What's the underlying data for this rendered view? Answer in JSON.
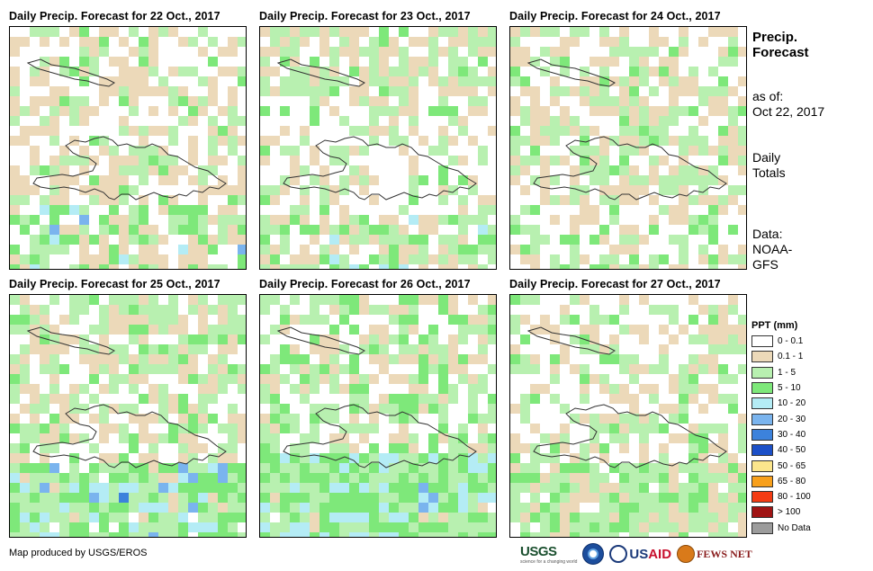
{
  "panels": [
    {
      "title": "Daily Precip. Forecast for 22 Oct., 2017",
      "profile": 0
    },
    {
      "title": "Daily Precip. Forecast for 23 Oct., 2017",
      "profile": 1
    },
    {
      "title": "Daily Precip. Forecast for 24 Oct., 2017",
      "profile": 2
    },
    {
      "title": "Daily Precip. Forecast for 25 Oct., 2017",
      "profile": 3
    },
    {
      "title": "Daily Precip. Forecast for 26 Oct., 2017",
      "profile": 4
    },
    {
      "title": "Daily Precip. Forecast for 27 Oct., 2017",
      "profile": 5
    }
  ],
  "sidebar": {
    "title_line1": "Precip.",
    "title_line2": "Forecast",
    "asof_label": "as of:",
    "asof_date": "Oct 22, 2017",
    "totals_line1": "Daily",
    "totals_line2": "Totals",
    "data_line1": "Data:",
    "data_line2": "NOAA-",
    "data_line3": "GFS"
  },
  "legend": {
    "title": "PPT (mm)",
    "items": [
      {
        "label": "0 - 0.1",
        "color": "#ffffff"
      },
      {
        "label": "0.1 - 1",
        "color": "#ecd9b9"
      },
      {
        "label": "1 - 5",
        "color": "#b8f0b0"
      },
      {
        "label": "5 - 10",
        "color": "#7ee87a"
      },
      {
        "label": "10 - 20",
        "color": "#b4ecf5"
      },
      {
        "label": "20 - 30",
        "color": "#7ab4ee"
      },
      {
        "label": "30 - 40",
        "color": "#3c82dc"
      },
      {
        "label": "40 - 50",
        "color": "#1c50c8"
      },
      {
        "label": "50 - 65",
        "color": "#fce68c"
      },
      {
        "label": "65 - 80",
        "color": "#f8a01c"
      },
      {
        "label": "80 - 100",
        "color": "#f43c14"
      },
      {
        "label": "> 100",
        "color": "#a01414"
      },
      {
        "label": "No Data",
        "color": "#9c9c9c"
      }
    ]
  },
  "credit": "Map produced by USGS/EROS",
  "logos": {
    "usgs": "USGS",
    "usgs_tagline": "science for a changing world",
    "usaid_a": "US",
    "usaid_b": "AID",
    "fews": "FEWS NET"
  }
}
